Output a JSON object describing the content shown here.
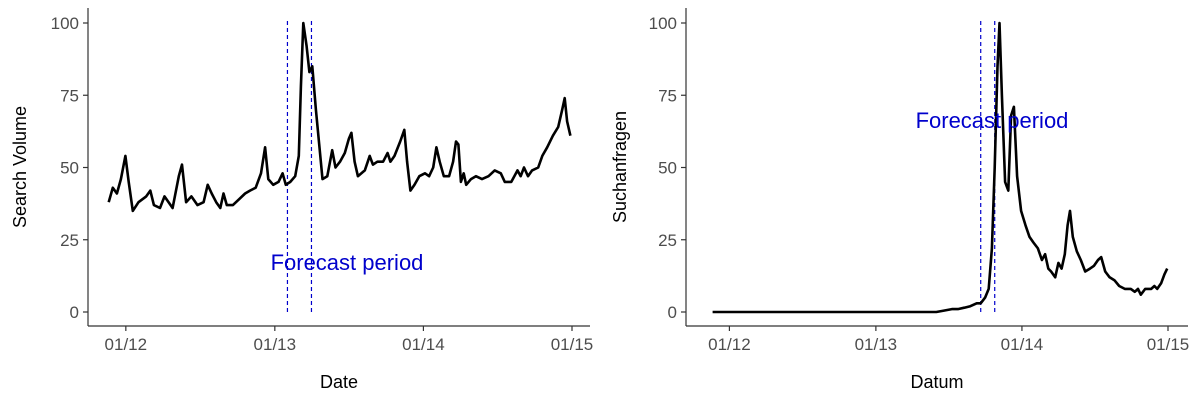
{
  "colors": {
    "line": "#000000",
    "forecast": "#0000cc",
    "axis": "#333333",
    "tick_text": "#4d4d4d"
  },
  "chart_data": [
    {
      "type": "line",
      "xlabel": "Date",
      "ylabel": "Search Volume",
      "annotation": "Forecast period",
      "x_ticks": [
        {
          "label": "01/12",
          "value": "2012-01-01"
        },
        {
          "label": "01/13",
          "value": "2013-01-01"
        },
        {
          "label": "01/14",
          "value": "2014-01-01"
        },
        {
          "label": "01/15",
          "value": "2015-01-01"
        }
      ],
      "y_ticks": [
        0,
        25,
        50,
        75,
        100
      ],
      "ylim": [
        0,
        100
      ],
      "xlim": [
        "2011-11-01",
        "2015-01-01"
      ],
      "grid": false,
      "forecast_window": [
        "2013-02-01",
        "2013-04-01"
      ],
      "series": [
        {
          "points": [
            [
              "2011-11-20",
              38
            ],
            [
              "2011-11-30",
              43
            ],
            [
              "2011-12-10",
              41
            ],
            [
              "2011-12-20",
              46
            ],
            [
              "2011-12-31",
              54
            ],
            [
              "2012-01-08",
              45
            ],
            [
              "2012-01-18",
              35
            ],
            [
              "2012-02-01",
              38
            ],
            [
              "2012-02-20",
              40
            ],
            [
              "2012-03-01",
              42
            ],
            [
              "2012-03-10",
              37
            ],
            [
              "2012-03-25",
              36
            ],
            [
              "2012-04-05",
              40
            ],
            [
              "2012-04-15",
              38
            ],
            [
              "2012-04-25",
              36
            ],
            [
              "2012-05-10",
              47
            ],
            [
              "2012-05-18",
              51
            ],
            [
              "2012-05-28",
              38
            ],
            [
              "2012-06-10",
              40
            ],
            [
              "2012-06-25",
              37
            ],
            [
              "2012-07-10",
              38
            ],
            [
              "2012-07-20",
              44
            ],
            [
              "2012-07-30",
              41
            ],
            [
              "2012-08-10",
              38
            ],
            [
              "2012-08-20",
              36
            ],
            [
              "2012-08-28",
              41
            ],
            [
              "2012-09-05",
              37
            ],
            [
              "2012-09-20",
              37
            ],
            [
              "2012-10-05",
              39
            ],
            [
              "2012-10-20",
              41
            ],
            [
              "2012-11-01",
              42
            ],
            [
              "2012-11-15",
              43
            ],
            [
              "2012-11-28",
              48
            ],
            [
              "2012-12-08",
              57
            ],
            [
              "2012-12-16",
              46
            ],
            [
              "2012-12-28",
              44
            ],
            [
              "2013-01-10",
              45
            ],
            [
              "2013-01-20",
              48
            ],
            [
              "2013-01-28",
              44
            ],
            [
              "2013-02-08",
              45
            ],
            [
              "2013-02-20",
              47
            ],
            [
              "2013-03-01",
              54
            ],
            [
              "2013-03-06",
              78
            ],
            [
              "2013-03-12",
              100
            ],
            [
              "2013-03-20",
              92
            ],
            [
              "2013-03-27",
              83
            ],
            [
              "2013-04-03",
              85
            ],
            [
              "2013-04-12",
              70
            ],
            [
              "2013-04-20",
              58
            ],
            [
              "2013-04-28",
              46
            ],
            [
              "2013-05-10",
              47
            ],
            [
              "2013-05-22",
              56
            ],
            [
              "2013-05-30",
              50
            ],
            [
              "2013-06-10",
              52
            ],
            [
              "2013-06-22",
              55
            ],
            [
              "2013-07-02",
              60
            ],
            [
              "2013-07-08",
              62
            ],
            [
              "2013-07-16",
              52
            ],
            [
              "2013-07-24",
              47
            ],
            [
              "2013-08-10",
              49
            ],
            [
              "2013-08-22",
              54
            ],
            [
              "2013-08-30",
              51
            ],
            [
              "2013-09-10",
              52
            ],
            [
              "2013-09-24",
              52
            ],
            [
              "2013-10-05",
              55
            ],
            [
              "2013-10-12",
              52
            ],
            [
              "2013-10-22",
              54
            ],
            [
              "2013-11-05",
              59
            ],
            [
              "2013-11-15",
              63
            ],
            [
              "2013-11-22",
              52
            ],
            [
              "2013-11-30",
              42
            ],
            [
              "2013-12-10",
              44
            ],
            [
              "2013-12-22",
              47
            ],
            [
              "2014-01-05",
              48
            ],
            [
              "2014-01-15",
              47
            ],
            [
              "2014-01-25",
              50
            ],
            [
              "2014-02-02",
              57
            ],
            [
              "2014-02-10",
              52
            ],
            [
              "2014-02-20",
              47
            ],
            [
              "2014-03-05",
              47
            ],
            [
              "2014-03-15",
              52
            ],
            [
              "2014-03-22",
              59
            ],
            [
              "2014-03-28",
              58
            ],
            [
              "2014-04-03",
              45
            ],
            [
              "2014-04-10",
              48
            ],
            [
              "2014-04-16",
              44
            ],
            [
              "2014-04-28",
              46
            ],
            [
              "2014-05-10",
              47
            ],
            [
              "2014-05-25",
              46
            ],
            [
              "2014-06-10",
              47
            ],
            [
              "2014-06-25",
              49
            ],
            [
              "2014-07-10",
              48
            ],
            [
              "2014-07-20",
              45
            ],
            [
              "2014-08-05",
              45
            ],
            [
              "2014-08-20",
              49
            ],
            [
              "2014-08-28",
              47
            ],
            [
              "2014-09-05",
              50
            ],
            [
              "2014-09-15",
              47
            ],
            [
              "2014-09-25",
              49
            ],
            [
              "2014-10-10",
              50
            ],
            [
              "2014-10-20",
              54
            ],
            [
              "2014-11-01",
              57
            ],
            [
              "2014-11-15",
              61
            ],
            [
              "2014-11-28",
              64
            ],
            [
              "2014-12-08",
              70
            ],
            [
              "2014-12-14",
              74
            ],
            [
              "2014-12-20",
              66
            ],
            [
              "2014-12-28",
              61
            ]
          ]
        }
      ]
    },
    {
      "type": "line",
      "xlabel": "Datum",
      "ylabel": "Suchanfragen",
      "annotation": "Forecast period",
      "x_ticks": [
        {
          "label": "01/12",
          "value": "2012-01-01"
        },
        {
          "label": "01/13",
          "value": "2013-01-01"
        },
        {
          "label": "01/14",
          "value": "2014-01-01"
        },
        {
          "label": "01/15",
          "value": "2015-01-01"
        }
      ],
      "y_ticks": [
        0,
        25,
        50,
        75,
        100
      ],
      "ylim": [
        0,
        100
      ],
      "xlim": [
        "2011-11-01",
        "2015-01-01"
      ],
      "grid": false,
      "forecast_window": [
        "2013-09-20",
        "2013-10-25"
      ],
      "series": [
        {
          "points": [
            [
              "2011-11-20",
              0
            ],
            [
              "2013-06-01",
              0
            ],
            [
              "2013-06-20",
              0.5
            ],
            [
              "2013-07-10",
              1
            ],
            [
              "2013-07-25",
              1
            ],
            [
              "2013-08-10",
              1.5
            ],
            [
              "2013-08-25",
              2
            ],
            [
              "2013-09-10",
              3
            ],
            [
              "2013-09-20",
              3
            ],
            [
              "2013-10-01",
              5
            ],
            [
              "2013-10-10",
              8
            ],
            [
              "2013-10-18",
              22
            ],
            [
              "2013-10-25",
              50
            ],
            [
              "2013-11-01",
              85
            ],
            [
              "2013-11-06",
              100
            ],
            [
              "2013-11-12",
              75
            ],
            [
              "2013-11-20",
              45
            ],
            [
              "2013-11-28",
              42
            ],
            [
              "2013-12-05",
              68
            ],
            [
              "2013-12-12",
              71
            ],
            [
              "2013-12-20",
              47
            ],
            [
              "2013-12-30",
              35
            ],
            [
              "2014-01-10",
              30
            ],
            [
              "2014-01-20",
              26
            ],
            [
              "2014-01-30",
              24
            ],
            [
              "2014-02-10",
              22
            ],
            [
              "2014-02-20",
              18
            ],
            [
              "2014-02-28",
              20
            ],
            [
              "2014-03-08",
              15
            ],
            [
              "2014-03-15",
              14
            ],
            [
              "2014-03-25",
              12
            ],
            [
              "2014-04-02",
              17
            ],
            [
              "2014-04-10",
              15
            ],
            [
              "2014-04-18",
              20
            ],
            [
              "2014-04-25",
              30
            ],
            [
              "2014-05-01",
              35
            ],
            [
              "2014-05-08",
              26
            ],
            [
              "2014-05-18",
              21
            ],
            [
              "2014-05-28",
              18
            ],
            [
              "2014-06-08",
              14
            ],
            [
              "2014-06-20",
              15
            ],
            [
              "2014-06-30",
              16
            ],
            [
              "2014-07-10",
              18
            ],
            [
              "2014-07-18",
              19
            ],
            [
              "2014-07-28",
              14
            ],
            [
              "2014-08-08",
              12
            ],
            [
              "2014-08-20",
              11
            ],
            [
              "2014-09-01",
              9
            ],
            [
              "2014-09-15",
              8
            ],
            [
              "2014-09-30",
              8
            ],
            [
              "2014-10-10",
              7
            ],
            [
              "2014-10-18",
              8
            ],
            [
              "2014-10-25",
              6
            ],
            [
              "2014-11-05",
              8
            ],
            [
              "2014-11-20",
              8
            ],
            [
              "2014-11-28",
              9
            ],
            [
              "2014-12-05",
              8
            ],
            [
              "2014-12-15",
              10
            ],
            [
              "2014-12-23",
              13
            ],
            [
              "2014-12-30",
              15
            ]
          ]
        }
      ]
    }
  ]
}
